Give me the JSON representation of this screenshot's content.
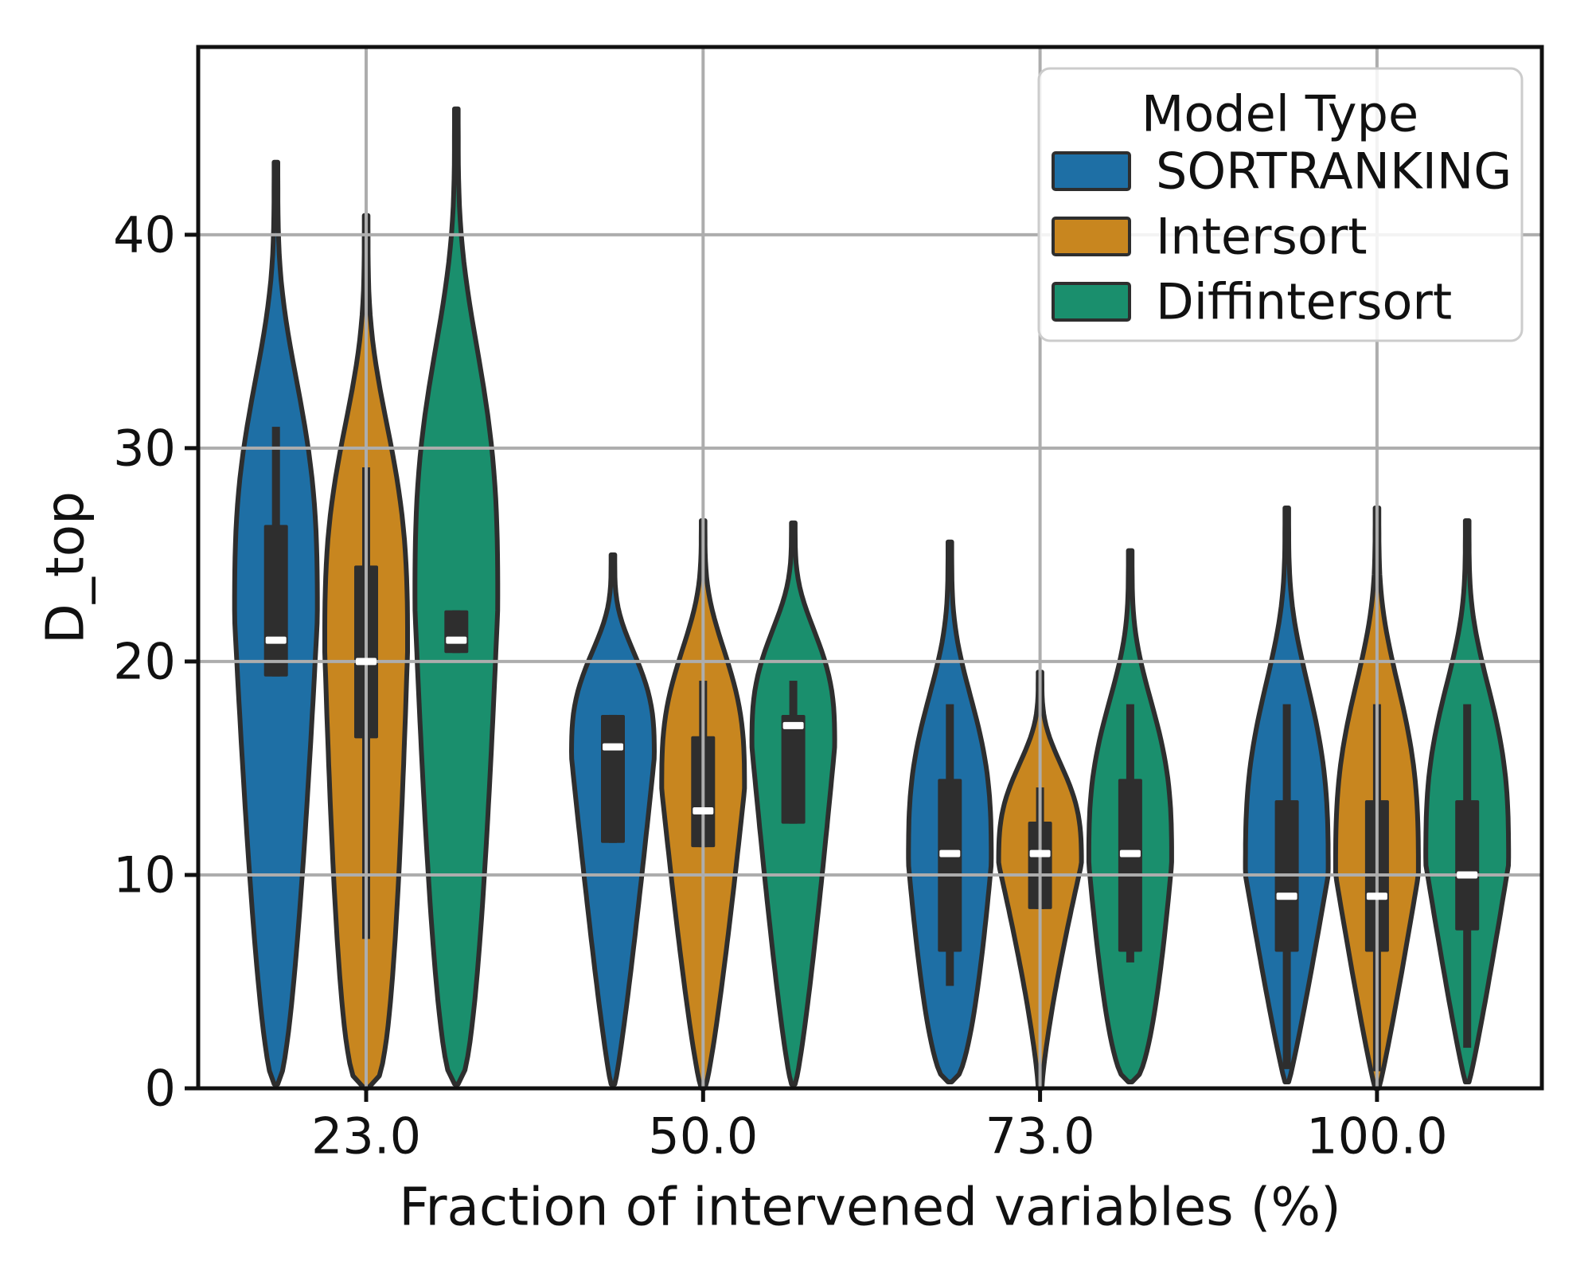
{
  "chart_data": {
    "type": "violin",
    "title": "",
    "xlabel": "Fraction of intervened variables (%)",
    "ylabel": "D_top",
    "categories": [
      "23.0",
      "50.0",
      "73.0",
      "100.0"
    ],
    "y_ticks": [
      0,
      10,
      20,
      30,
      40
    ],
    "ylim": [
      0,
      48.8
    ],
    "grid": "on",
    "legend": {
      "title": "Model Type",
      "position": "upper right",
      "entries": [
        "SORTRANKING",
        "Intersort",
        "Diffintersort"
      ]
    },
    "style": {
      "series_colors": [
        "#1E6FA5",
        "#C8861F",
        "#1A8F6D"
      ],
      "edge_color": "#2E2E2E",
      "grid_color": "#ADADAD",
      "spine_color": "#111111",
      "median_color": "#FFFFFF",
      "legend_border_color": "#CCCCCC",
      "background": "#FFFFFF"
    },
    "series": [
      {
        "name": "SORTRANKING",
        "color": "#1E6FA5",
        "violins": [
          {
            "category": "23.0",
            "min": 0.2,
            "max": 43.4,
            "peak": 22.0,
            "tail_pow": 0.6,
            "box": {
              "whisker_low": 19.3,
              "q1": 19.3,
              "median": 21.0,
              "q3": 26.4,
              "whisker_high": 31.0
            }
          },
          {
            "category": "50.0",
            "min": 0.2,
            "max": 25.0,
            "peak": 15.5,
            "tail_pow": 0.85,
            "box": {
              "whisker_low": 11.5,
              "q1": 11.5,
              "median": 16.0,
              "q3": 17.5,
              "whisker_high": 17.5
            }
          },
          {
            "category": "73.0",
            "min": 0.3,
            "max": 25.6,
            "peak": 10.5,
            "tail_pow": 0.5,
            "box": {
              "whisker_low": 4.8,
              "q1": 6.4,
              "median": 11.0,
              "q3": 14.5,
              "whisker_high": 18.0
            }
          },
          {
            "category": "100.0",
            "min": 0.3,
            "max": 27.2,
            "peak": 10.0,
            "tail_pow": 0.9,
            "box": {
              "whisker_low": 0.9,
              "q1": 6.4,
              "median": 9.0,
              "q3": 13.5,
              "whisker_high": 18.0
            }
          }
        ]
      },
      {
        "name": "Intersort",
        "color": "#C8861F",
        "violins": [
          {
            "category": "23.0",
            "min": 0.0,
            "max": 40.9,
            "peak": 20.5,
            "tail_pow": 0.35,
            "box": {
              "whisker_low": 7.0,
              "q1": 16.4,
              "median": 20.0,
              "q3": 24.5,
              "whisker_high": 29.1
            }
          },
          {
            "category": "50.0",
            "min": 0.0,
            "max": 26.6,
            "peak": 14.0,
            "tail_pow": 0.8,
            "box": {
              "whisker_low": 11.3,
              "q1": 11.3,
              "median": 13.0,
              "q3": 16.5,
              "whisker_high": 19.1
            }
          },
          {
            "category": "73.0",
            "min": 0.0,
            "max": 19.5,
            "peak": 10.5,
            "tail_pow": 1.3,
            "box": {
              "whisker_low": 8.4,
              "q1": 8.4,
              "median": 11.0,
              "q3": 12.5,
              "whisker_high": 14.1
            }
          },
          {
            "category": "100.0",
            "min": 0.0,
            "max": 27.2,
            "peak": 10.0,
            "tail_pow": 0.9,
            "box": {
              "whisker_low": 0.8,
              "q1": 6.4,
              "median": 9.0,
              "q3": 13.5,
              "whisker_high": 18.0
            }
          }
        ]
      },
      {
        "name": "Diffintersort",
        "color": "#1A8F6D",
        "violins": [
          {
            "category": "23.0",
            "min": 0.2,
            "max": 45.9,
            "peak": 22.5,
            "tail_pow": 0.5,
            "box": {
              "whisker_low": 20.4,
              "q1": 20.4,
              "median": 21.0,
              "q3": 22.4,
              "whisker_high": 22.4
            }
          },
          {
            "category": "50.0",
            "min": 0.2,
            "max": 26.5,
            "peak": 16.0,
            "tail_pow": 0.8,
            "box": {
              "whisker_low": 12.4,
              "q1": 12.4,
              "median": 17.0,
              "q3": 17.5,
              "whisker_high": 19.1
            }
          },
          {
            "category": "73.0",
            "min": 0.3,
            "max": 25.2,
            "peak": 10.5,
            "tail_pow": 0.5,
            "box": {
              "whisker_low": 5.9,
              "q1": 6.4,
              "median": 11.0,
              "q3": 14.5,
              "whisker_high": 18.0
            }
          },
          {
            "category": "100.0",
            "min": 0.3,
            "max": 26.6,
            "peak": 10.5,
            "tail_pow": 0.9,
            "box": {
              "whisker_low": 1.9,
              "q1": 7.4,
              "median": 10.0,
              "q3": 13.5,
              "whisker_high": 18.0
            }
          }
        ]
      }
    ]
  }
}
